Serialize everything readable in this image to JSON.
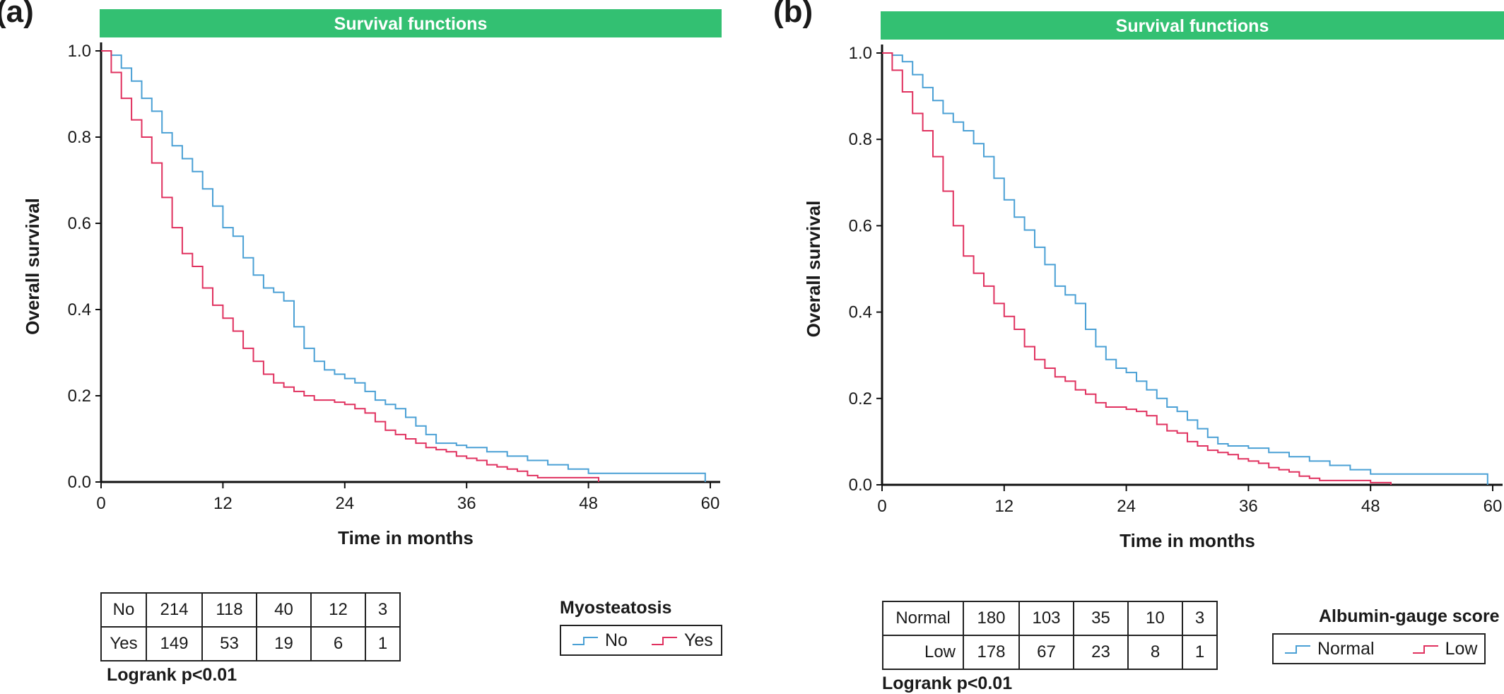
{
  "colors": {
    "banner": "#33c072",
    "no_series": "#4aa0d5",
    "yes_series": "#e0315f",
    "axis": "#111111"
  },
  "chart_data": [
    {
      "panel": "(a)",
      "type": "line",
      "title": "Survival functions",
      "xlabel": "Time in months",
      "ylabel": "Overall survival",
      "xlim": [
        0,
        60
      ],
      "ylim": [
        0,
        1
      ],
      "x_ticks": [
        0,
        12,
        24,
        36,
        48,
        60
      ],
      "y_ticks": [
        "0.0",
        "0.2",
        "0.4",
        "0.6",
        "0.8",
        "1.0"
      ],
      "legend_title": "Myosteatosis",
      "series": [
        {
          "name": "No",
          "color": "#4aa0d5",
          "points": [
            [
              0,
              1.0
            ],
            [
              1,
              0.99
            ],
            [
              2,
              0.96
            ],
            [
              3,
              0.93
            ],
            [
              4,
              0.89
            ],
            [
              5,
              0.86
            ],
            [
              6,
              0.81
            ],
            [
              7,
              0.78
            ],
            [
              8,
              0.75
            ],
            [
              9,
              0.72
            ],
            [
              10,
              0.68
            ],
            [
              11,
              0.64
            ],
            [
              12,
              0.59
            ],
            [
              13,
              0.57
            ],
            [
              14,
              0.52
            ],
            [
              15,
              0.48
            ],
            [
              16,
              0.45
            ],
            [
              17,
              0.44
            ],
            [
              18,
              0.42
            ],
            [
              19,
              0.36
            ],
            [
              20,
              0.31
            ],
            [
              21,
              0.28
            ],
            [
              22,
              0.26
            ],
            [
              23,
              0.25
            ],
            [
              24,
              0.24
            ],
            [
              25,
              0.23
            ],
            [
              26,
              0.21
            ],
            [
              27,
              0.19
            ],
            [
              28,
              0.18
            ],
            [
              29,
              0.17
            ],
            [
              30,
              0.15
            ],
            [
              31,
              0.13
            ],
            [
              32,
              0.11
            ],
            [
              33,
              0.09
            ],
            [
              34,
              0.09
            ],
            [
              35,
              0.085
            ],
            [
              36,
              0.08
            ],
            [
              38,
              0.07
            ],
            [
              40,
              0.06
            ],
            [
              42,
              0.05
            ],
            [
              44,
              0.04
            ],
            [
              46,
              0.03
            ],
            [
              48,
              0.02
            ],
            [
              55,
              0.02
            ],
            [
              59.5,
              0.02
            ],
            [
              59.5,
              0.0
            ]
          ]
        },
        {
          "name": "Yes",
          "color": "#e0315f",
          "points": [
            [
              0,
              1.0
            ],
            [
              1,
              0.95
            ],
            [
              2,
              0.89
            ],
            [
              3,
              0.84
            ],
            [
              4,
              0.8
            ],
            [
              5,
              0.74
            ],
            [
              6,
              0.66
            ],
            [
              7,
              0.59
            ],
            [
              8,
              0.53
            ],
            [
              9,
              0.5
            ],
            [
              10,
              0.45
            ],
            [
              11,
              0.41
            ],
            [
              12,
              0.38
            ],
            [
              13,
              0.35
            ],
            [
              14,
              0.31
            ],
            [
              15,
              0.28
            ],
            [
              16,
              0.25
            ],
            [
              17,
              0.23
            ],
            [
              18,
              0.22
            ],
            [
              19,
              0.21
            ],
            [
              20,
              0.2
            ],
            [
              21,
              0.19
            ],
            [
              22,
              0.19
            ],
            [
              23,
              0.185
            ],
            [
              24,
              0.18
            ],
            [
              25,
              0.17
            ],
            [
              26,
              0.16
            ],
            [
              27,
              0.14
            ],
            [
              28,
              0.12
            ],
            [
              29,
              0.11
            ],
            [
              30,
              0.1
            ],
            [
              31,
              0.09
            ],
            [
              32,
              0.08
            ],
            [
              33,
              0.075
            ],
            [
              34,
              0.07
            ],
            [
              35,
              0.06
            ],
            [
              36,
              0.055
            ],
            [
              37,
              0.05
            ],
            [
              38,
              0.04
            ],
            [
              39,
              0.035
            ],
            [
              40,
              0.03
            ],
            [
              41,
              0.025
            ],
            [
              42,
              0.015
            ],
            [
              43,
              0.01
            ],
            [
              46,
              0.01
            ],
            [
              48,
              0.01
            ],
            [
              49,
              0.0
            ]
          ]
        }
      ],
      "risk_table": [
        {
          "label": "No",
          "values": [
            "214",
            "118",
            "40",
            "12",
            "3"
          ]
        },
        {
          "label": "Yes",
          "values": [
            "149",
            "53",
            "19",
            "6",
            "1"
          ]
        }
      ],
      "logrank": "Logrank p<0.01"
    },
    {
      "panel": "(b)",
      "type": "line",
      "title": "Survival functions",
      "xlabel": "Time in months",
      "ylabel": "Overall survival",
      "xlim": [
        0,
        60
      ],
      "ylim": [
        0,
        1
      ],
      "x_ticks": [
        0,
        12,
        24,
        36,
        48,
        60
      ],
      "y_ticks": [
        "0.0",
        "0.2",
        "0.4",
        "0.6",
        "0.8",
        "1.0"
      ],
      "legend_title": "Albumin-gauge score",
      "series": [
        {
          "name": "Normal",
          "color": "#4aa0d5",
          "points": [
            [
              0,
              1.0
            ],
            [
              1,
              0.995
            ],
            [
              2,
              0.98
            ],
            [
              3,
              0.95
            ],
            [
              4,
              0.92
            ],
            [
              5,
              0.89
            ],
            [
              6,
              0.86
            ],
            [
              7,
              0.84
            ],
            [
              8,
              0.82
            ],
            [
              9,
              0.79
            ],
            [
              10,
              0.76
            ],
            [
              11,
              0.71
            ],
            [
              12,
              0.66
            ],
            [
              13,
              0.62
            ],
            [
              14,
              0.59
            ],
            [
              15,
              0.55
            ],
            [
              16,
              0.51
            ],
            [
              17,
              0.46
            ],
            [
              18,
              0.44
            ],
            [
              19,
              0.42
            ],
            [
              20,
              0.36
            ],
            [
              21,
              0.32
            ],
            [
              22,
              0.29
            ],
            [
              23,
              0.27
            ],
            [
              24,
              0.26
            ],
            [
              25,
              0.24
            ],
            [
              26,
              0.22
            ],
            [
              27,
              0.2
            ],
            [
              28,
              0.18
            ],
            [
              29,
              0.17
            ],
            [
              30,
              0.15
            ],
            [
              31,
              0.13
            ],
            [
              32,
              0.11
            ],
            [
              33,
              0.095
            ],
            [
              34,
              0.09
            ],
            [
              35,
              0.09
            ],
            [
              36,
              0.085
            ],
            [
              38,
              0.075
            ],
            [
              40,
              0.065
            ],
            [
              42,
              0.055
            ],
            [
              44,
              0.045
            ],
            [
              46,
              0.035
            ],
            [
              48,
              0.025
            ],
            [
              55,
              0.025
            ],
            [
              59.5,
              0.025
            ],
            [
              59.5,
              0.0
            ]
          ]
        },
        {
          "name": "Low",
          "color": "#e0315f",
          "points": [
            [
              0,
              1.0
            ],
            [
              1,
              0.96
            ],
            [
              2,
              0.91
            ],
            [
              3,
              0.86
            ],
            [
              4,
              0.82
            ],
            [
              5,
              0.76
            ],
            [
              6,
              0.68
            ],
            [
              7,
              0.6
            ],
            [
              8,
              0.53
            ],
            [
              9,
              0.49
            ],
            [
              10,
              0.46
            ],
            [
              11,
              0.42
            ],
            [
              12,
              0.39
            ],
            [
              13,
              0.36
            ],
            [
              14,
              0.32
            ],
            [
              15,
              0.29
            ],
            [
              16,
              0.27
            ],
            [
              17,
              0.25
            ],
            [
              18,
              0.24
            ],
            [
              19,
              0.22
            ],
            [
              20,
              0.21
            ],
            [
              21,
              0.19
            ],
            [
              22,
              0.18
            ],
            [
              23,
              0.18
            ],
            [
              24,
              0.175
            ],
            [
              25,
              0.17
            ],
            [
              26,
              0.16
            ],
            [
              27,
              0.14
            ],
            [
              28,
              0.125
            ],
            [
              29,
              0.12
            ],
            [
              30,
              0.1
            ],
            [
              31,
              0.09
            ],
            [
              32,
              0.08
            ],
            [
              33,
              0.075
            ],
            [
              34,
              0.07
            ],
            [
              35,
              0.06
            ],
            [
              36,
              0.055
            ],
            [
              37,
              0.05
            ],
            [
              38,
              0.04
            ],
            [
              39,
              0.035
            ],
            [
              40,
              0.03
            ],
            [
              41,
              0.02
            ],
            [
              42,
              0.015
            ],
            [
              43,
              0.01
            ],
            [
              46,
              0.01
            ],
            [
              48,
              0.005
            ],
            [
              50,
              0.0
            ]
          ]
        }
      ],
      "risk_table": [
        {
          "label": "Normal",
          "values": [
            "180",
            "103",
            "35",
            "10",
            "3"
          ]
        },
        {
          "label": "Low",
          "values": [
            "178",
            "67",
            "23",
            "8",
            "1"
          ]
        }
      ],
      "logrank": "Logrank p<0.01"
    }
  ]
}
